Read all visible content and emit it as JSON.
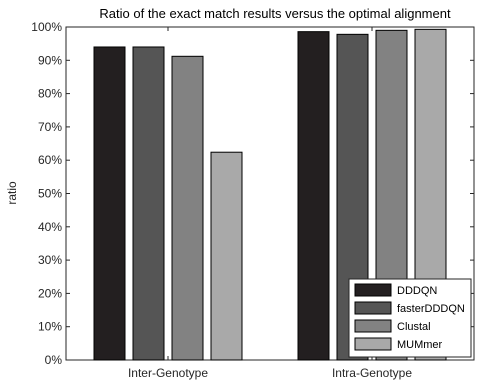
{
  "chart_data": {
    "type": "bar",
    "title": "Ratio of the exact match results versus the optimal alignment",
    "xlabel": "",
    "ylabel": "ratio",
    "categories": [
      "Inter-Genotype",
      "Intra-Genotype"
    ],
    "ylim": [
      0,
      1
    ],
    "yticks": [
      "0%",
      "10%",
      "20%",
      "30%",
      "40%",
      "50%",
      "60%",
      "70%",
      "80%",
      "90%",
      "100%"
    ],
    "grid": false,
    "legend_position": "bottom-right",
    "series": [
      {
        "name": "DDDQN",
        "values": [
          0.94,
          0.986
        ],
        "color": "#231f20"
      },
      {
        "name": "fasterDDDQN",
        "values": [
          0.94,
          0.978
        ],
        "color": "#555555"
      },
      {
        "name": "Clustal",
        "values": [
          0.912,
          0.99
        ],
        "color": "#828282"
      },
      {
        "name": "MUMmer",
        "values": [
          0.624,
          0.993
        ],
        "color": "#a9a9a9"
      }
    ]
  }
}
